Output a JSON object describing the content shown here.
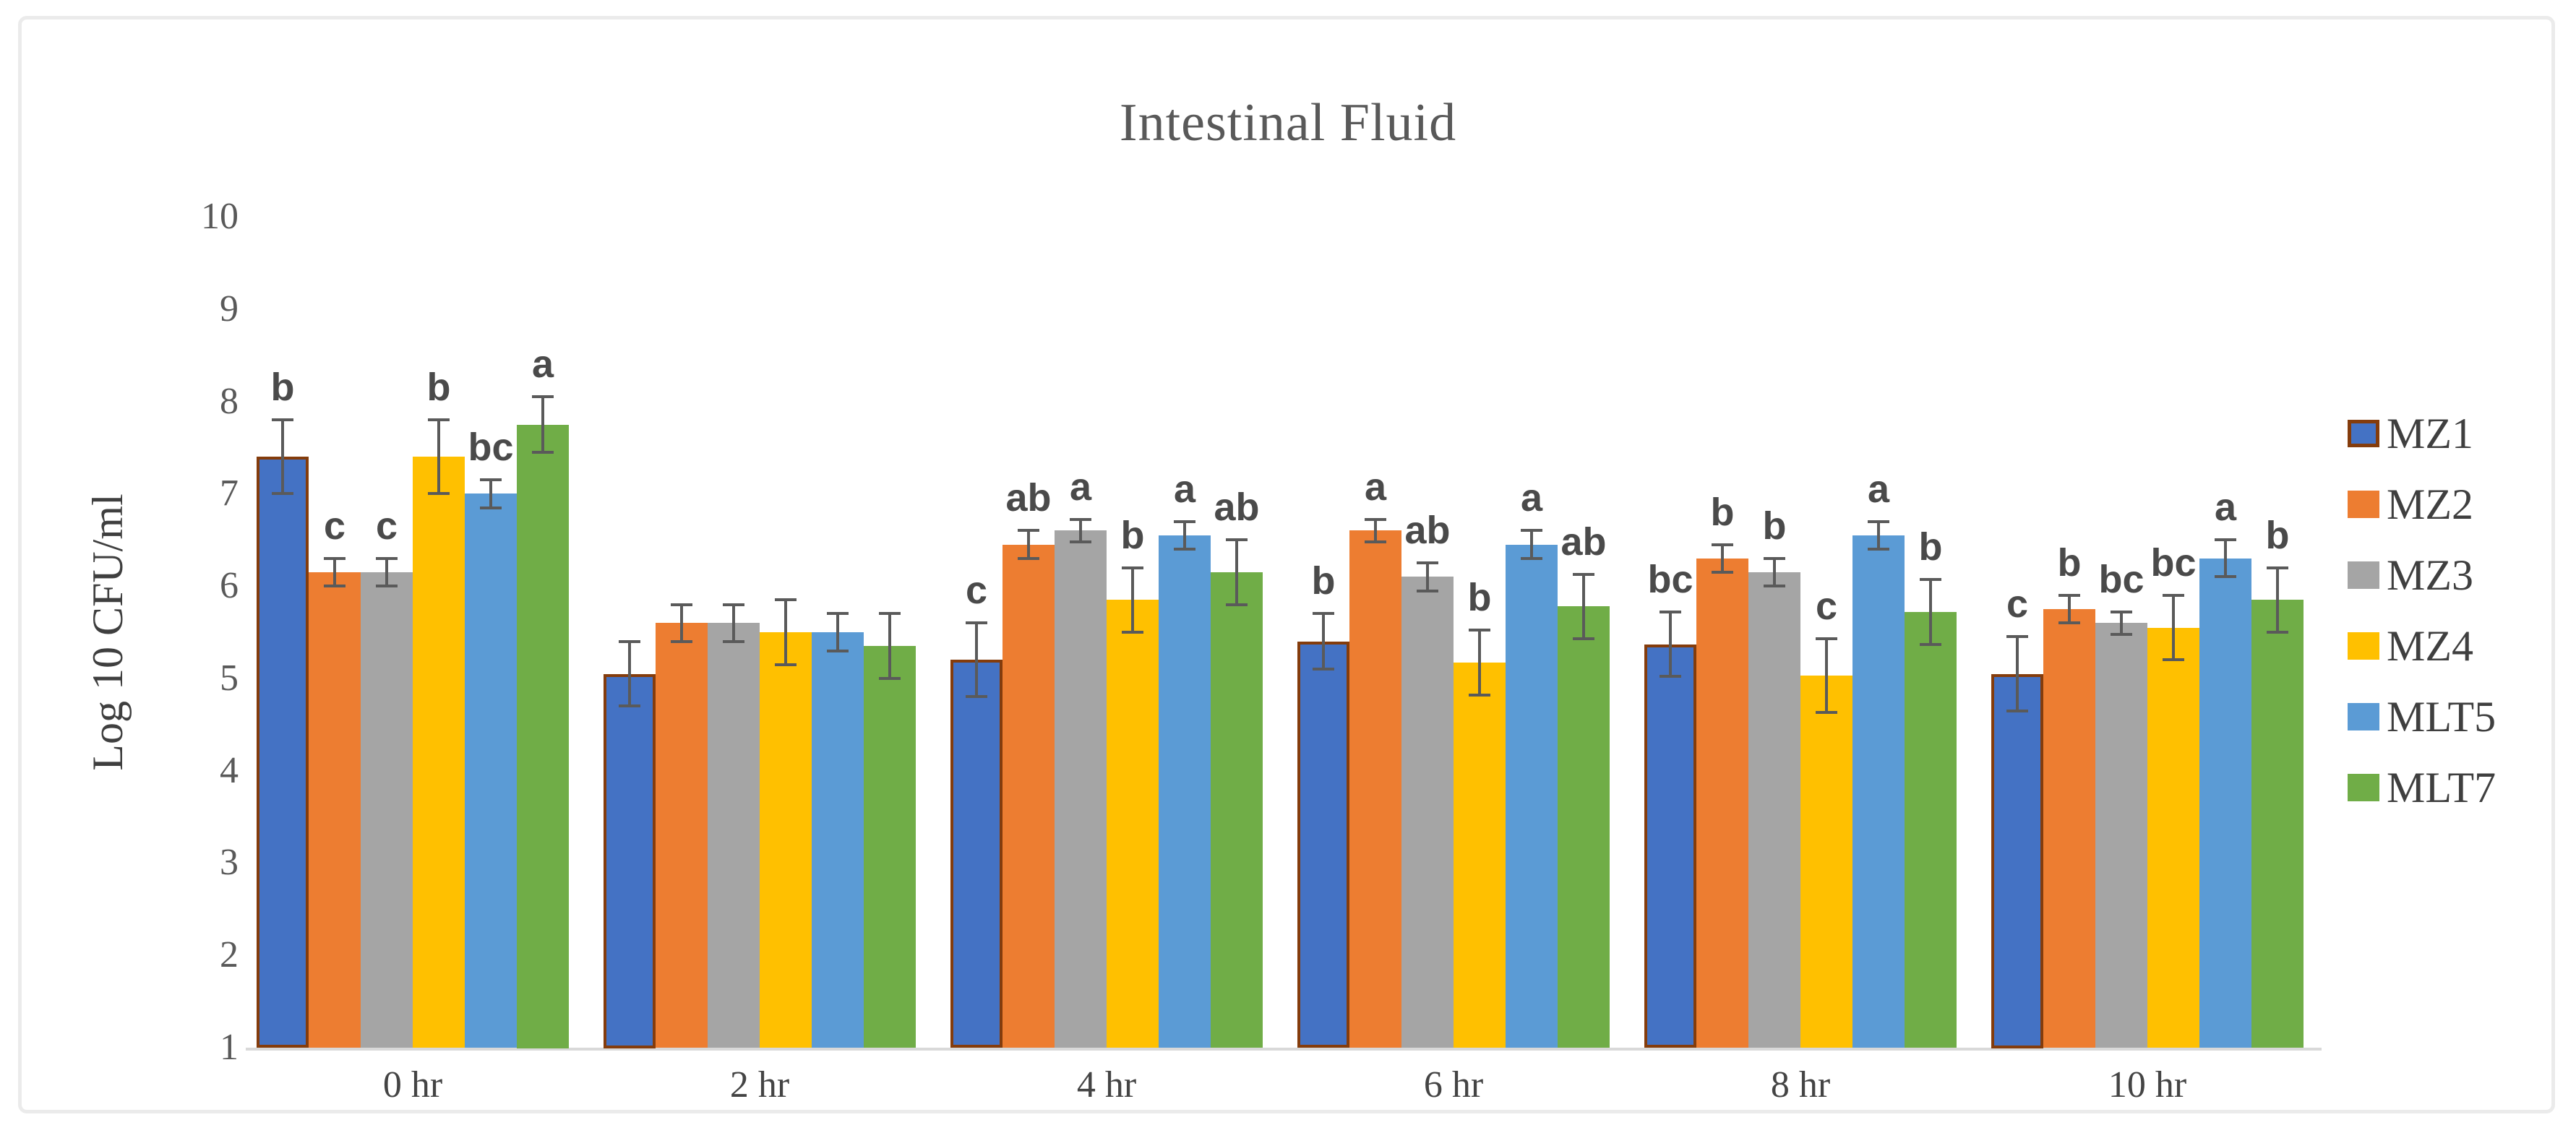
{
  "figure": {
    "title": "Intestinal Fluid",
    "ylabel": "Log 10 CFU/ml"
  },
  "chart_data": {
    "type": "bar",
    "title": "Intestinal Fluid",
    "xlabel": "",
    "ylabel": "Log 10 CFU/ml",
    "ylim": [
      1,
      10
    ],
    "yticks": [
      1,
      2,
      3,
      4,
      5,
      6,
      7,
      8,
      9,
      10
    ],
    "grid": false,
    "legend_position": "right",
    "error_bar_color": "#5a5a5a",
    "text_color": "#595959",
    "categories": [
      "0 hr",
      "2 hr",
      "4 hr",
      "6 hr",
      "8 hr",
      "10 hr"
    ],
    "series": [
      {
        "name": "MZ1",
        "color": "#4472C4",
        "border_color": "#843C0C",
        "values": [
          7.4,
          5.05,
          5.2,
          5.4,
          5.37,
          5.05
        ],
        "errors": [
          0.4,
          0.35,
          0.4,
          0.3,
          0.35,
          0.4
        ],
        "letters": [
          "b",
          "",
          "c",
          "b",
          "bc",
          "c"
        ]
      },
      {
        "name": "MZ2",
        "color": "#ED7D31",
        "values": [
          6.15,
          5.6,
          6.45,
          6.6,
          6.3,
          5.75
        ],
        "errors": [
          0.15,
          0.2,
          0.15,
          0.12,
          0.15,
          0.15
        ],
        "letters": [
          "c",
          "",
          "ab",
          "a",
          "b",
          "b"
        ]
      },
      {
        "name": "MZ3",
        "color": "#A5A5A5",
        "values": [
          6.15,
          5.6,
          6.6,
          6.1,
          6.15,
          5.6
        ],
        "errors": [
          0.15,
          0.2,
          0.12,
          0.15,
          0.15,
          0.12
        ],
        "letters": [
          "c",
          "",
          "a",
          "ab",
          "b",
          "bc"
        ]
      },
      {
        "name": "MZ4",
        "color": "#FFC000",
        "values": [
          7.4,
          5.5,
          5.85,
          5.17,
          5.03,
          5.55
        ],
        "errors": [
          0.4,
          0.35,
          0.35,
          0.35,
          0.4,
          0.35
        ],
        "letters": [
          "b",
          "",
          "b",
          "b",
          "c",
          "bc"
        ]
      },
      {
        "name": "MLT5",
        "color": "#5B9BD5",
        "values": [
          7.0,
          5.5,
          6.55,
          6.45,
          6.55,
          6.3
        ],
        "errors": [
          0.15,
          0.2,
          0.15,
          0.15,
          0.15,
          0.2
        ],
        "letters": [
          "bc",
          "",
          "a",
          "a",
          "a",
          "a"
        ]
      },
      {
        "name": "MLT7",
        "color": "#70AD47",
        "values": [
          7.75,
          5.35,
          6.15,
          5.78,
          5.72,
          5.85
        ],
        "errors": [
          0.3,
          0.35,
          0.35,
          0.35,
          0.35,
          0.35
        ],
        "letters": [
          "a",
          "",
          "ab",
          "ab",
          "b",
          "b"
        ]
      }
    ]
  }
}
